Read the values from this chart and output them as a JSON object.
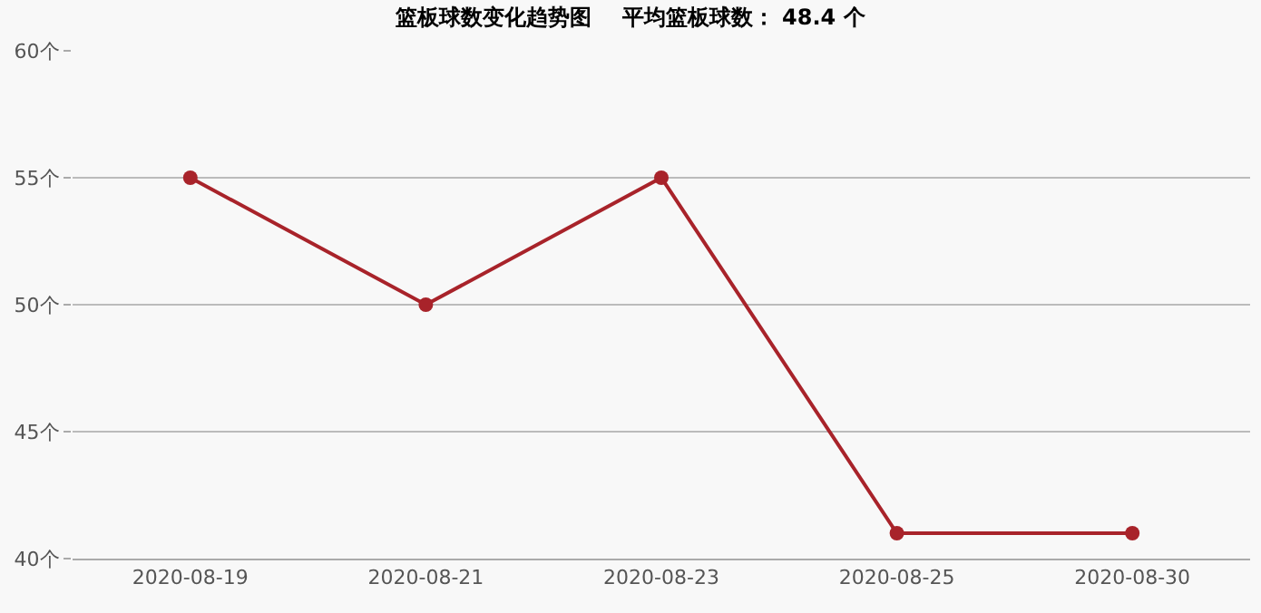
{
  "chart_data": {
    "type": "line",
    "title": "篮板球数变化趋势图    平均篮板球数： 48.4 个",
    "categories": [
      "2020-08-19",
      "2020-08-21",
      "2020-08-23",
      "2020-08-25",
      "2020-08-30"
    ],
    "series": [
      {
        "color": "#a8232a",
        "values": [
          55,
          50,
          55,
          41,
          41
        ]
      }
    ],
    "ylim": [
      40,
      60
    ],
    "yticks": [
      {
        "value": 40,
        "label": "40个"
      },
      {
        "value": 45,
        "label": "45个"
      },
      {
        "value": 50,
        "label": "50个"
      },
      {
        "value": 55,
        "label": "55个"
      },
      {
        "value": 60,
        "label": "60个"
      }
    ],
    "grid": "y",
    "marker": "circle",
    "line_style": "solid"
  }
}
